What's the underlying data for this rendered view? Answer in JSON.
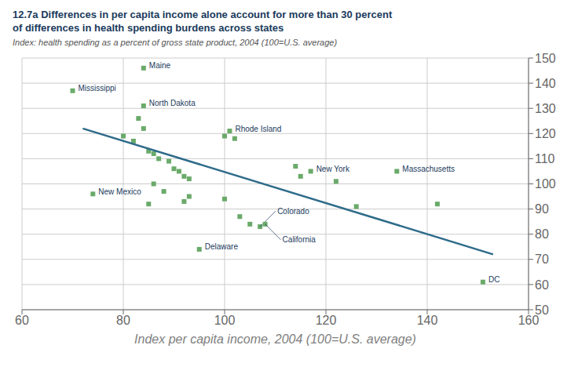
{
  "chart_data": {
    "type": "scatter",
    "title": [
      "12.7a Differences in per capita income alone account for more than 30 percent",
      "of differences in health spending burdens across states"
    ],
    "subtitle": "Index: health spending as a percent of gross state product, 2004 (100=U.S. average)",
    "xlabel": "Index per capita income, 2004 (100=U.S. average)",
    "xlim": [
      60,
      160
    ],
    "xticks": [
      60,
      80,
      100,
      120,
      140,
      160
    ],
    "ylim": [
      50,
      150
    ],
    "yticks": [
      50,
      60,
      70,
      80,
      90,
      100,
      110,
      120,
      130,
      140,
      150
    ],
    "grid": true,
    "series": [
      {
        "type": "scatter",
        "marker": "square",
        "color": "#6aaa6a",
        "x": [
          70,
          84,
          84,
          83,
          84,
          80,
          82,
          85,
          86,
          87,
          89,
          90,
          91,
          92,
          93,
          86,
          88,
          93,
          92,
          74,
          85,
          100,
          101,
          102,
          100,
          103,
          105,
          107,
          108,
          95,
          114,
          115,
          117,
          122,
          134,
          126,
          142,
          151
        ],
        "values": [
          137,
          146,
          131,
          126,
          122,
          119,
          117,
          113,
          112,
          110,
          109,
          106,
          105,
          103,
          102,
          100,
          97,
          95,
          93,
          96,
          92,
          119,
          121,
          118,
          94,
          87,
          84,
          83,
          84,
          74,
          107,
          103,
          105,
          101,
          105,
          91,
          92,
          61
        ],
        "labels": [
          "Mississippi",
          "Maine",
          "North Dakota",
          null,
          null,
          null,
          null,
          null,
          null,
          null,
          null,
          null,
          null,
          null,
          null,
          null,
          null,
          null,
          null,
          "New Mexico",
          null,
          null,
          "Rhode Island",
          null,
          null,
          null,
          null,
          "Colorado",
          "California",
          "Delaware",
          null,
          null,
          "New York",
          null,
          "Massachusetts",
          null,
          null,
          "DC"
        ]
      },
      {
        "type": "line",
        "color": "#2e6b8a",
        "x": [
          72,
          153
        ],
        "values": [
          122,
          72
        ]
      }
    ]
  }
}
